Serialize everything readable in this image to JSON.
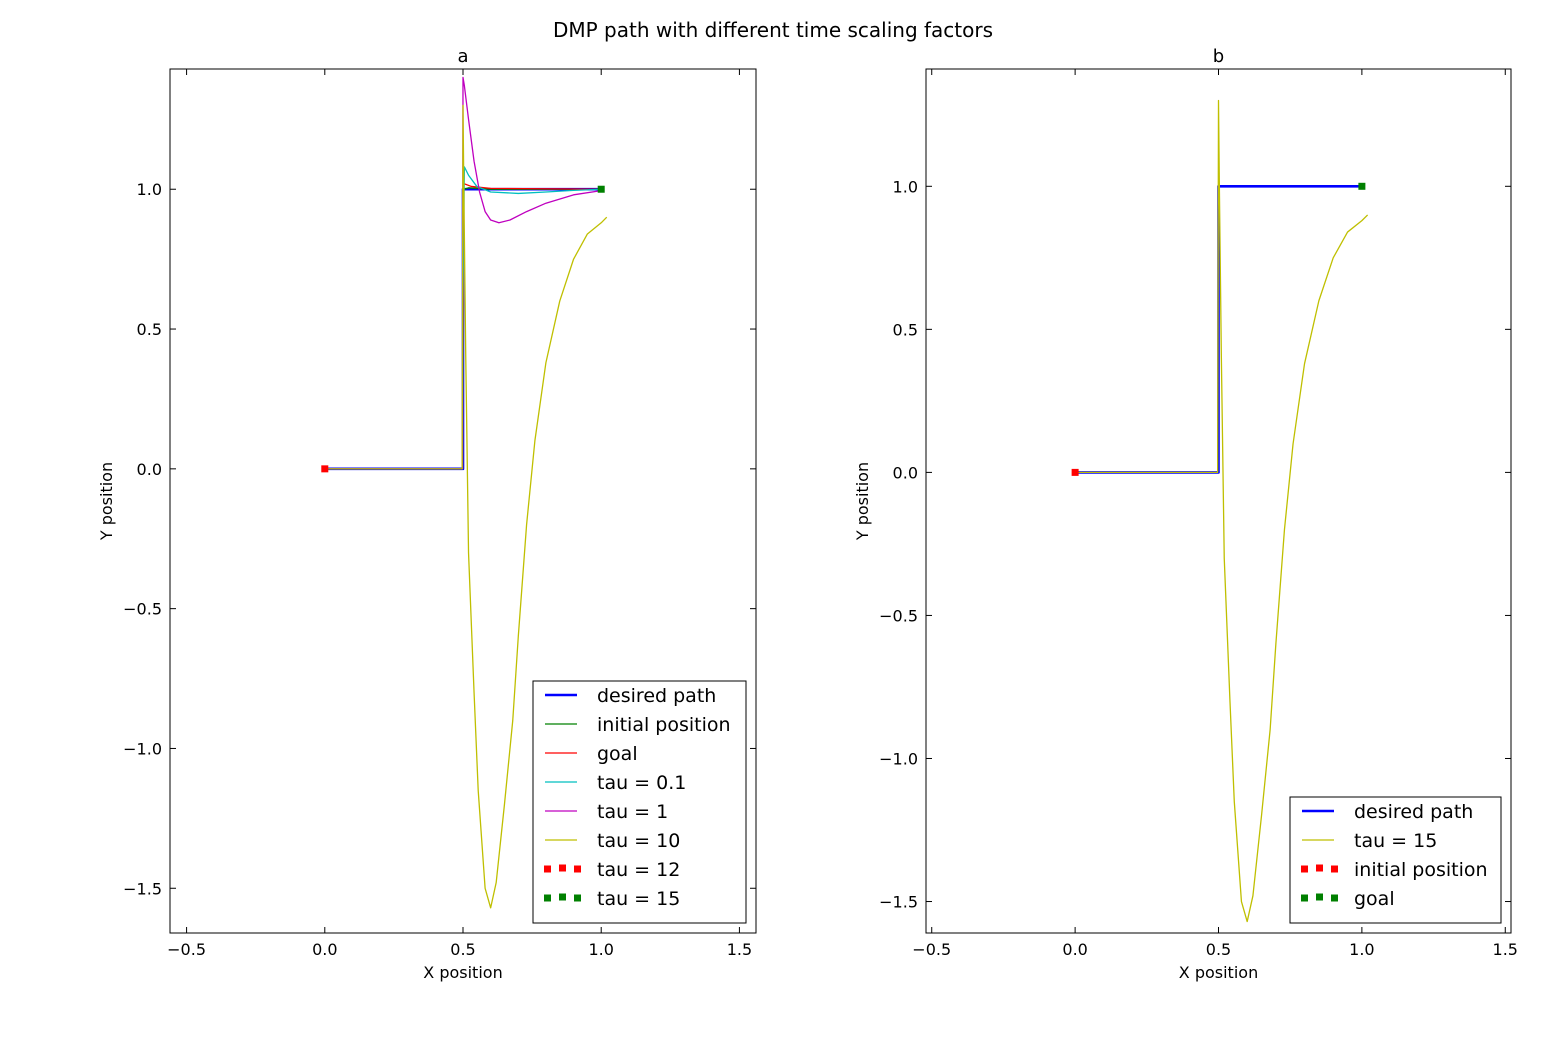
{
  "figure": {
    "suptitle": "DMP path with different time scaling factors"
  },
  "chart_data": [
    {
      "type": "line",
      "title": "a",
      "xlabel": "X position",
      "ylabel": "Y position",
      "xlim": [
        -0.56,
        1.56
      ],
      "ylim": [
        -1.66,
        1.43
      ],
      "xticks": [
        -0.5,
        0.0,
        0.5,
        1.0,
        1.5
      ],
      "xtick_labels": [
        "−0.5",
        "0.0",
        "0.5",
        "1.0",
        "1.5"
      ],
      "yticks": [
        -1.5,
        -1.0,
        -0.5,
        0.0,
        0.5,
        1.0
      ],
      "ytick_labels": [
        "−1.5",
        "−1.0",
        "−0.5",
        "0.0",
        "0.5",
        "1.0"
      ],
      "grid": false,
      "legend_position": "bottom-right",
      "series": [
        {
          "name": "desired path",
          "color": "#0000ff",
          "width": 2.6,
          "style": "line",
          "points": [
            [
              0,
              0
            ],
            [
              0.5,
              0
            ],
            [
              0.5,
              1
            ],
            [
              1.0,
              1
            ]
          ]
        },
        {
          "name": "initial position",
          "color": "#008000",
          "width": 1.3,
          "style": "line",
          "points": [
            [
              0,
              0
            ],
            [
              0.498,
              0
            ],
            [
              0.5,
              0.3
            ],
            [
              0.502,
              1.0
            ],
            [
              0.52,
              1.005
            ],
            [
              0.6,
              1.0
            ],
            [
              1.0,
              1.0
            ]
          ]
        },
        {
          "name": "goal",
          "color": "#ff0000",
          "width": 1.3,
          "style": "line",
          "points": [
            [
              0,
              0
            ],
            [
              0.498,
              0
            ],
            [
              0.5,
              0.5
            ],
            [
              0.503,
              1.02
            ],
            [
              0.53,
              1.01
            ],
            [
              0.6,
              1.003
            ],
            [
              1.0,
              1.0
            ]
          ]
        },
        {
          "name": "tau = 0.1",
          "color": "#00bfbf",
          "width": 1.3,
          "style": "line",
          "points": [
            [
              0,
              0
            ],
            [
              0.498,
              0
            ],
            [
              0.5,
              0.6
            ],
            [
              0.505,
              1.08
            ],
            [
              0.52,
              1.05
            ],
            [
              0.55,
              1.01
            ],
            [
              0.6,
              0.99
            ],
            [
              0.7,
              0.985
            ],
            [
              0.8,
              0.99
            ],
            [
              0.9,
              0.996
            ],
            [
              1.0,
              1.0
            ]
          ]
        },
        {
          "name": "tau = 1",
          "color": "#bf00bf",
          "width": 1.3,
          "style": "line",
          "points": [
            [
              0,
              0
            ],
            [
              0.498,
              0
            ],
            [
              0.5,
              1.4
            ],
            [
              0.505,
              1.37
            ],
            [
              0.52,
              1.25
            ],
            [
              0.54,
              1.1
            ],
            [
              0.56,
              0.99
            ],
            [
              0.58,
              0.92
            ],
            [
              0.6,
              0.89
            ],
            [
              0.63,
              0.88
            ],
            [
              0.67,
              0.89
            ],
            [
              0.73,
              0.92
            ],
            [
              0.8,
              0.95
            ],
            [
              0.9,
              0.98
            ],
            [
              1.0,
              0.995
            ]
          ]
        },
        {
          "name": "tau = 10",
          "color": "#bfbf00",
          "width": 1.3,
          "style": "line",
          "points": [
            [
              0,
              0
            ],
            [
              0.49,
              0.0
            ],
            [
              0.497,
              0.0
            ],
            [
              0.5,
              1.3
            ],
            [
              0.503,
              1.0
            ],
            [
              0.51,
              0.4
            ],
            [
              0.52,
              -0.3
            ],
            [
              0.54,
              -0.8
            ],
            [
              0.555,
              -1.15
            ],
            [
              0.58,
              -1.5
            ],
            [
              0.6,
              -1.57
            ],
            [
              0.62,
              -1.48
            ],
            [
              0.65,
              -1.2
            ],
            [
              0.68,
              -0.9
            ],
            [
              0.7,
              -0.6
            ],
            [
              0.73,
              -0.2
            ],
            [
              0.76,
              0.1
            ],
            [
              0.8,
              0.38
            ],
            [
              0.85,
              0.6
            ],
            [
              0.9,
              0.75
            ],
            [
              0.95,
              0.84
            ],
            [
              1.0,
              0.88
            ],
            [
              1.02,
              0.9
            ]
          ]
        },
        {
          "name": "tau = 12",
          "color": "#ff0000",
          "style": "marker",
          "points": [
            [
              0,
              0
            ]
          ]
        },
        {
          "name": "tau = 15",
          "color": "#008000",
          "style": "marker",
          "points": [
            [
              1.0,
              1.0
            ]
          ]
        }
      ]
    },
    {
      "type": "line",
      "title": "b",
      "xlabel": "X position",
      "ylabel": "Y position",
      "xlim": [
        -0.52,
        1.52
      ],
      "ylim": [
        -1.61,
        1.41
      ],
      "xticks": [
        -0.5,
        0.0,
        0.5,
        1.0,
        1.5
      ],
      "xtick_labels": [
        "−0.5",
        "0.0",
        "0.5",
        "1.0",
        "1.5"
      ],
      "yticks": [
        -1.5,
        -1.0,
        -0.5,
        0.0,
        0.5,
        1.0
      ],
      "ytick_labels": [
        "−1.5",
        "−1.0",
        "−0.5",
        "0.0",
        "0.5",
        "1.0"
      ],
      "grid": false,
      "legend_position": "bottom-right",
      "series": [
        {
          "name": "desired path",
          "color": "#0000ff",
          "width": 2.6,
          "style": "line",
          "points": [
            [
              0,
              0
            ],
            [
              0.5,
              0
            ],
            [
              0.5,
              1
            ],
            [
              1.0,
              1
            ]
          ]
        },
        {
          "name": "tau = 15",
          "color": "#bfbf00",
          "width": 1.3,
          "style": "line",
          "points": [
            [
              0,
              0
            ],
            [
              0.49,
              0.0
            ],
            [
              0.497,
              0.0
            ],
            [
              0.5,
              1.3
            ],
            [
              0.503,
              1.0
            ],
            [
              0.51,
              0.4
            ],
            [
              0.52,
              -0.3
            ],
            [
              0.54,
              -0.8
            ],
            [
              0.555,
              -1.15
            ],
            [
              0.58,
              -1.5
            ],
            [
              0.6,
              -1.57
            ],
            [
              0.62,
              -1.48
            ],
            [
              0.65,
              -1.2
            ],
            [
              0.68,
              -0.9
            ],
            [
              0.7,
              -0.6
            ],
            [
              0.73,
              -0.2
            ],
            [
              0.76,
              0.1
            ],
            [
              0.8,
              0.38
            ],
            [
              0.85,
              0.6
            ],
            [
              0.9,
              0.75
            ],
            [
              0.95,
              0.84
            ],
            [
              1.0,
              0.88
            ],
            [
              1.02,
              0.9
            ]
          ]
        },
        {
          "name": "initial position",
          "color": "#ff0000",
          "style": "marker",
          "points": [
            [
              0,
              0
            ]
          ]
        },
        {
          "name": "goal",
          "color": "#008000",
          "style": "marker",
          "points": [
            [
              1.0,
              1.0
            ]
          ]
        }
      ]
    }
  ]
}
